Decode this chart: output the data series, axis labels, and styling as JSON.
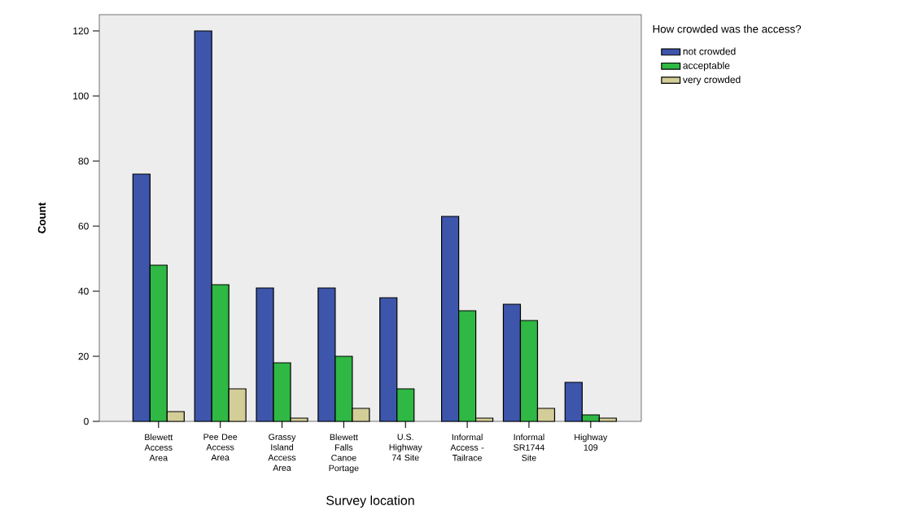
{
  "chart_data": {
    "type": "bar",
    "xlabel": "Survey location",
    "ylabel": "Count",
    "legend_title": "How crowded was the access?",
    "categories": [
      "Blewett Access Area",
      "Pee Dee Access Area",
      "Grassy Island Access Area",
      "Blewett Falls Canoe Portage",
      "U.S. Highway 74 Site",
      "Informal Access - Tailrace",
      "Informal SR1744 Site",
      "Highway 109"
    ],
    "series": [
      {
        "name": "not crowded",
        "color": "#3d56ab",
        "values": [
          76,
          120,
          41,
          41,
          38,
          63,
          36,
          12
        ]
      },
      {
        "name": "acceptable",
        "color": "#2fb844",
        "values": [
          48,
          42,
          18,
          20,
          10,
          34,
          31,
          2
        ]
      },
      {
        "name": "very crowded",
        "color": "#d3cd98",
        "values": [
          3,
          10,
          1,
          4,
          null,
          1,
          4,
          1
        ]
      }
    ],
    "ylim": [
      0,
      125
    ],
    "yticks": [
      0,
      20,
      40,
      60,
      80,
      100,
      120
    ],
    "grid": false,
    "legend": "top right"
  }
}
